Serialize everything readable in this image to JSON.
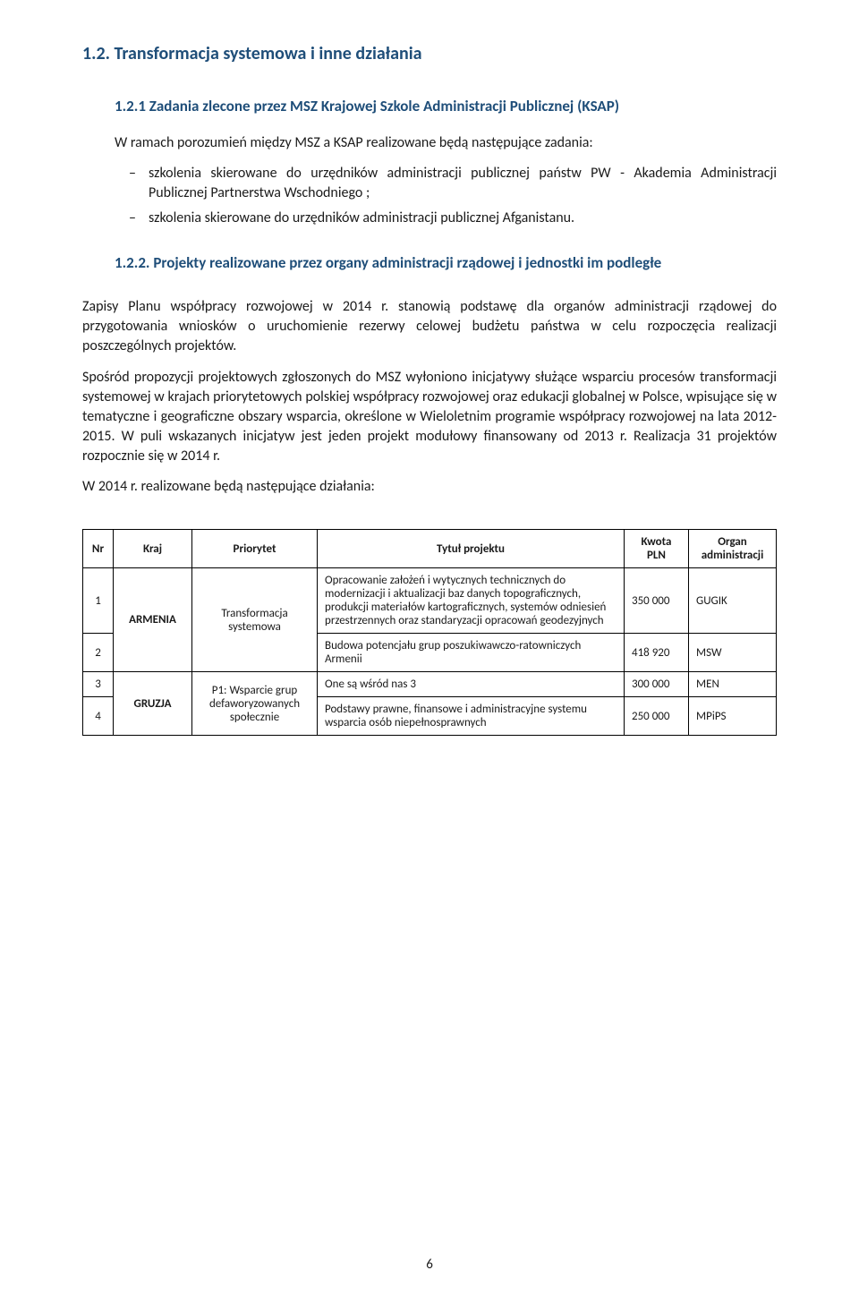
{
  "heading_1_2": "1.2.   Transformacja systemowa i inne działania",
  "heading_1_2_1": "1.2.1  Zadania zlecone przez MSZ Krajowej Szkole Administracji Publicznej (KSAP)",
  "para_intro": "W ramach porozumień między MSZ a KSAP realizowane będą następujące zadania:",
  "bullets": [
    "szkolenia skierowane do urzędników administracji publicznej państw PW - Akademia Administracji Publicznej Partnerstwa Wschodniego ;",
    "szkolenia skierowane do urzędników administracji publicznej Afganistanu."
  ],
  "heading_1_2_2": "1.2.2. Projekty realizowane przez organy administracji rządowej i jednostki im podległe",
  "para_a": "Zapisy Planu współpracy rozwojowej w 2014 r. stanowią podstawę dla organów administracji rządowej do przygotowania wniosków o uruchomienie rezerwy celowej budżetu państwa w celu rozpoczęcia realizacji poszczególnych projektów.",
  "para_b": "Spośród propozycji projektowych zgłoszonych do MSZ wyłoniono inicjatywy służące wsparciu procesów transformacji systemowej w krajach priorytetowych polskiej współpracy rozwojowej oraz edukacji globalnej w Polsce, wpisujące się w tematyczne i geograficzne obszary wsparcia, określone w Wieloletnim programie współpracy rozwojowej na lata 2012-2015. W puli wskazanych inicjatyw jest jeden projekt modułowy finansowany od 2013 r. Realizacja 31 projektów rozpocznie się w 2014 r.",
  "para_c": "W 2014 r. realizowane będą następujące działania:",
  "table": {
    "headers": {
      "nr": "Nr",
      "kraj": "Kraj",
      "priorytet": "Priorytet",
      "tytul": "Tytuł projektu",
      "kwota": "Kwota PLN",
      "organ": "Organ administracji"
    },
    "rows": [
      {
        "nr": "1",
        "kraj": "ARMENIA",
        "priorytet": "Transformacja systemowa",
        "tytul": "Opracowanie założeń i wytycznych technicznych do modernizacji i aktualizacji baz danych topograficznych, produkcji materiałów kartograficznych, systemów odniesień przestrzennych oraz standaryzacji opracowań geodezyjnych",
        "kwota": "350 000",
        "organ": "GUGIK"
      },
      {
        "nr": "2",
        "tytul": "Budowa potencjału grup poszukiwawczo-ratowniczych Armenii",
        "kwota": "418 920",
        "organ": "MSW"
      },
      {
        "nr": "3",
        "kraj": "GRUZJA",
        "priorytet": "P1: Wsparcie grup defaworyzowanych społecznie",
        "tytul": "One są wśród nas 3",
        "kwota": "300 000",
        "organ": "MEN"
      },
      {
        "nr": "4",
        "tytul": "Podstawy prawne, finansowe i administracyjne systemu wsparcia osób niepełnosprawnych",
        "kwota": "250 000",
        "organ": "MPiPS"
      }
    ]
  },
  "page_number": "6"
}
